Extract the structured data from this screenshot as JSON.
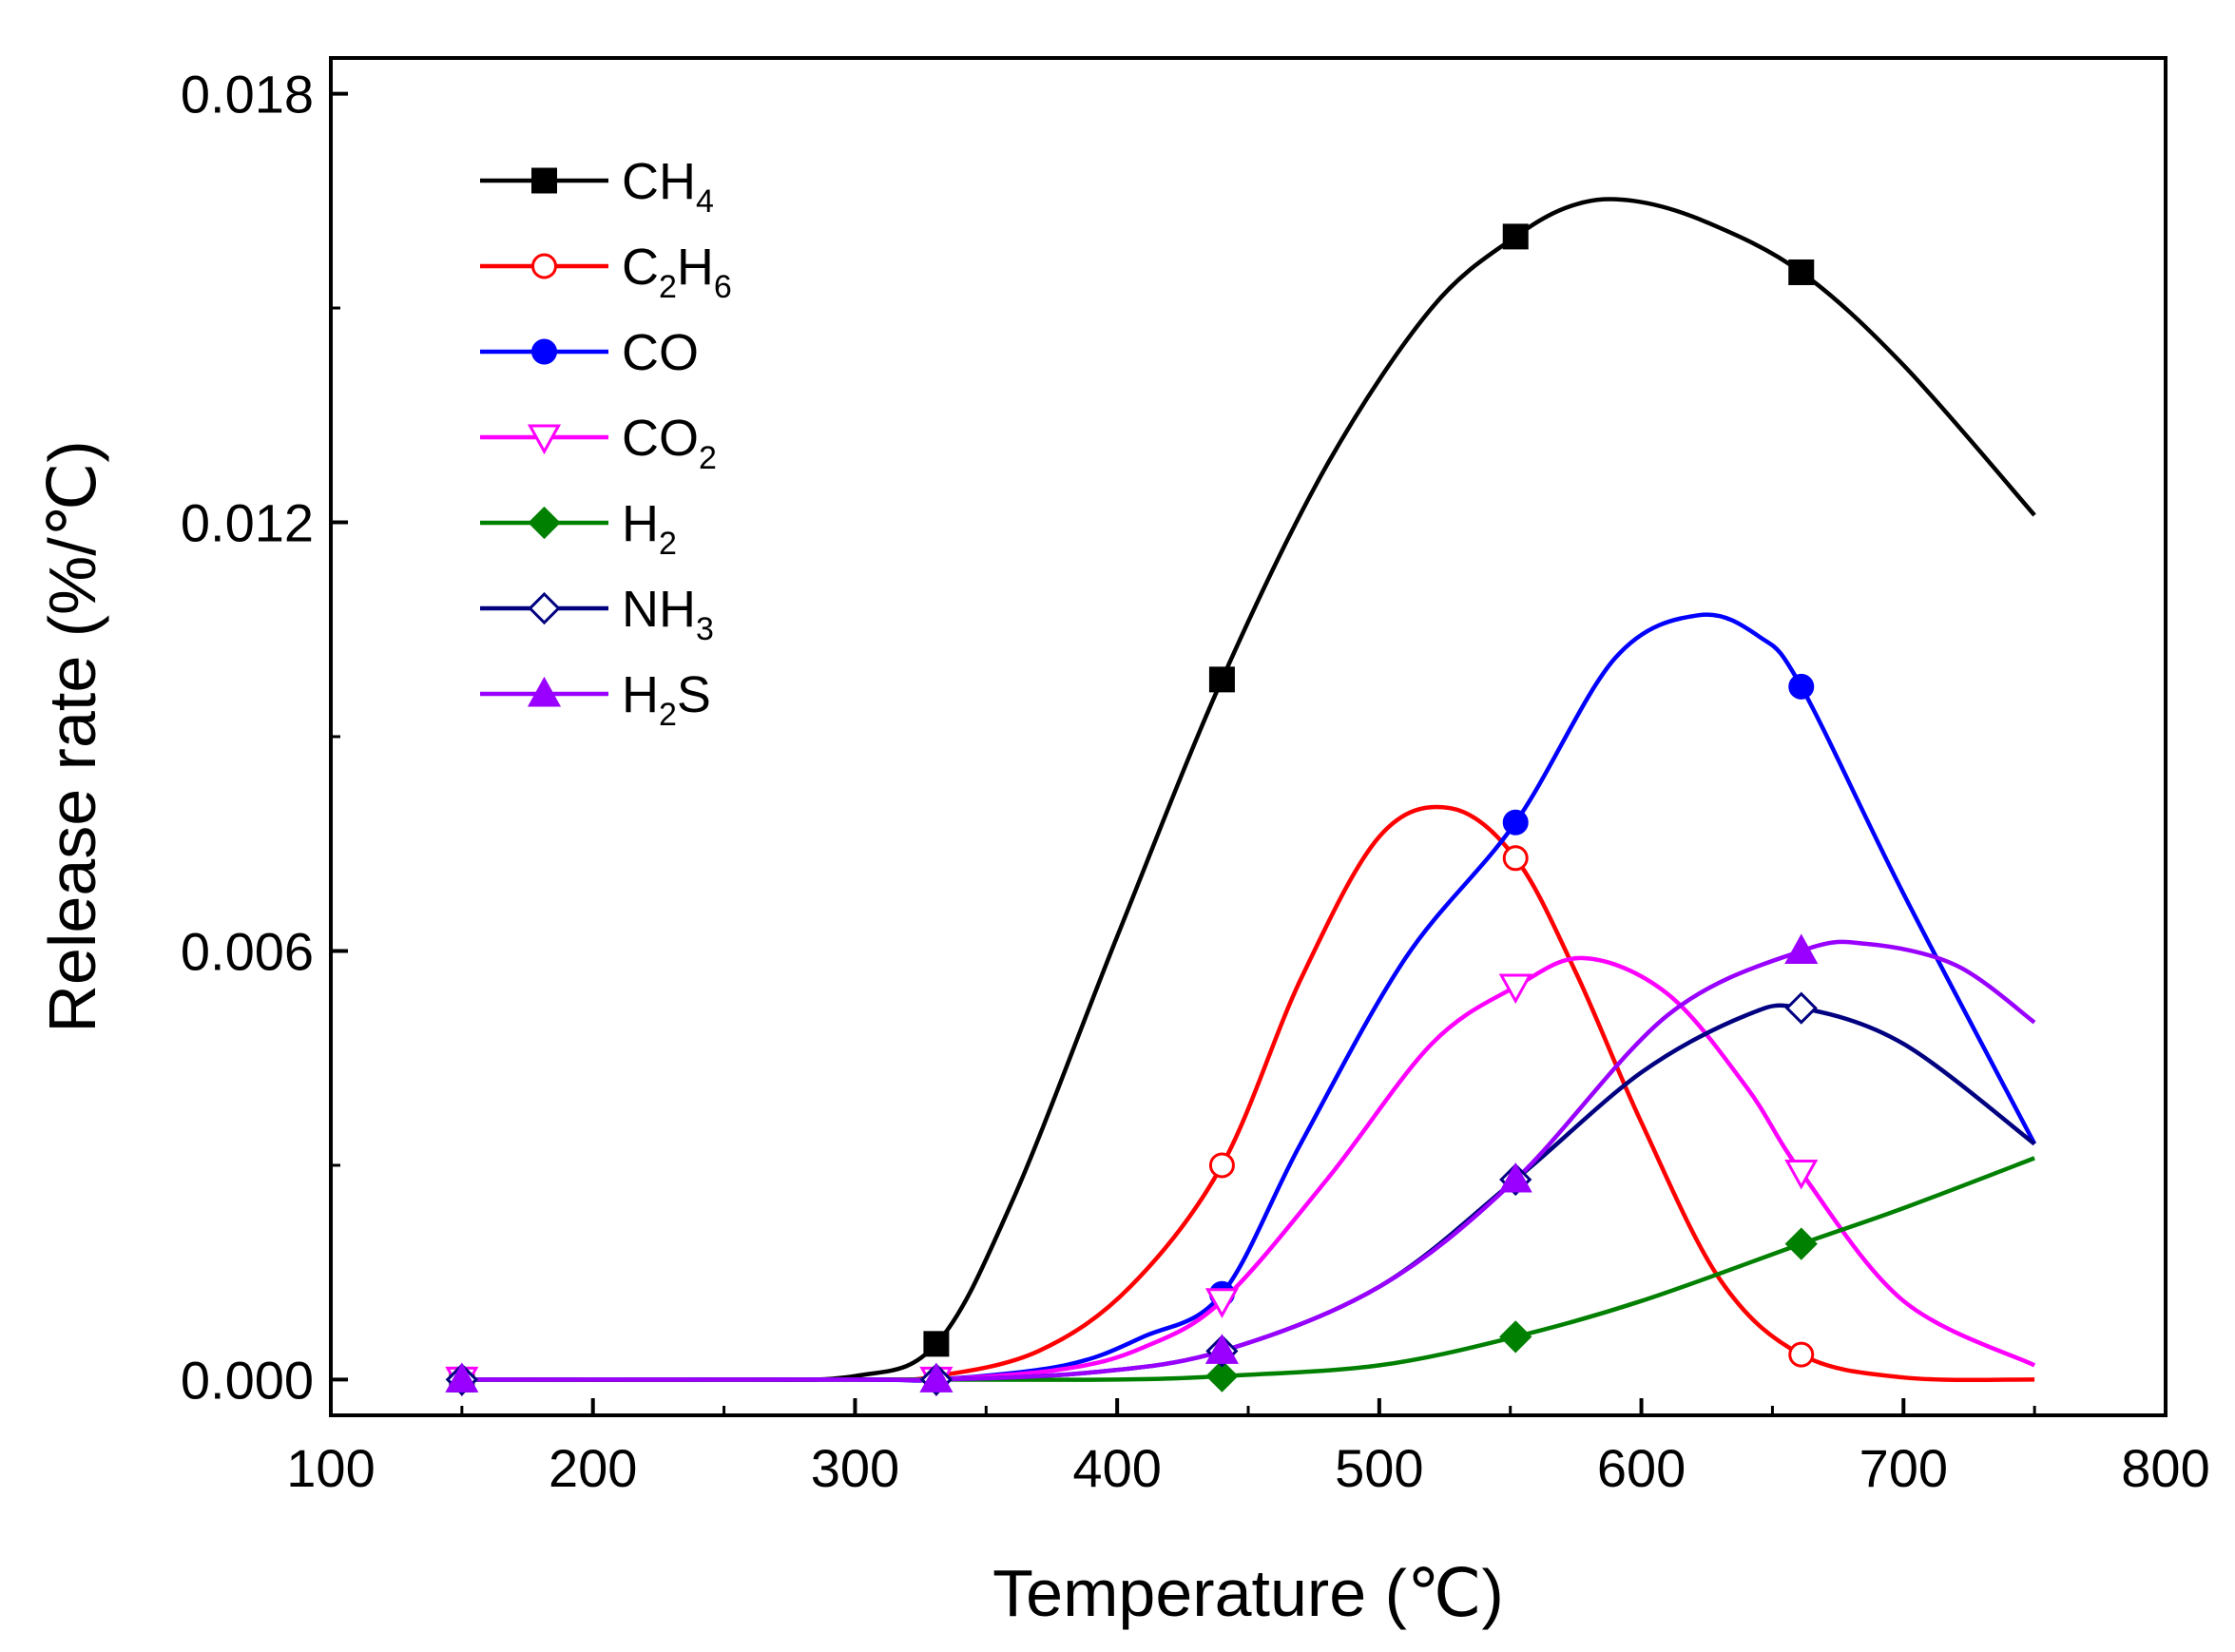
{
  "chart_data": {
    "type": "line",
    "title": "",
    "xlabel": "Temperature (℃)",
    "ylabel": "Release rate (%/℃)",
    "xlim": [
      100,
      800
    ],
    "ylim": [
      -0.0005,
      0.0185
    ],
    "xticks": [
      100,
      200,
      300,
      400,
      500,
      600,
      700,
      800
    ],
    "xtick_labels": [
      "100",
      "200",
      "300",
      "400",
      "500",
      "600",
      "700",
      "800"
    ],
    "yticks": [
      0.0,
      0.006,
      0.012,
      0.018
    ],
    "ytick_labels": [
      "0.000",
      "0.006",
      "0.012",
      "0.018"
    ],
    "legend_position": "top-left",
    "grid": false,
    "series": [
      {
        "name": "CH4",
        "label_main": "CH",
        "label_sub": "4",
        "label_tail": "",
        "label_tail_sub": "",
        "color": "#000000",
        "marker": "square",
        "filled": true,
        "points": [
          [
            150,
            0.0
          ],
          [
            331,
            0.0005
          ],
          [
            440,
            0.0098
          ],
          [
            552,
            0.016
          ],
          [
            661,
            0.0155
          ]
        ],
        "curve": [
          [
            150,
            0.0
          ],
          [
            250,
            0.0
          ],
          [
            300,
            5e-05
          ],
          [
            331,
            0.0005
          ],
          [
            360,
            0.0025
          ],
          [
            400,
            0.0062
          ],
          [
            440,
            0.0098
          ],
          [
            480,
            0.0128
          ],
          [
            520,
            0.015
          ],
          [
            552,
            0.016
          ],
          [
            575,
            0.01645
          ],
          [
            597,
            0.0165
          ],
          [
            625,
            0.0162
          ],
          [
            661,
            0.0155
          ],
          [
            700,
            0.0142
          ],
          [
            750,
            0.0121
          ]
        ]
      },
      {
        "name": "C2H6",
        "label_main": "C",
        "label_sub": "2",
        "label_tail": "H",
        "label_tail_sub": "6",
        "color": "#ff0000",
        "marker": "circle",
        "filled": false,
        "points": [
          [
            150,
            0.0
          ],
          [
            331,
            0.0
          ],
          [
            440,
            0.003
          ],
          [
            552,
            0.0073
          ],
          [
            661,
            0.00035
          ]
        ],
        "curve": [
          [
            150,
            0.0
          ],
          [
            300,
            0.0
          ],
          [
            331,
            5e-05
          ],
          [
            370,
            0.0004
          ],
          [
            405,
            0.0013
          ],
          [
            440,
            0.003
          ],
          [
            470,
            0.0056
          ],
          [
            500,
            0.0076
          ],
          [
            527,
            0.008
          ],
          [
            552,
            0.0073
          ],
          [
            575,
            0.0057
          ],
          [
            600,
            0.0036
          ],
          [
            630,
            0.0014
          ],
          [
            661,
            0.00035
          ],
          [
            700,
            3e-05
          ],
          [
            750,
            0.0
          ]
        ]
      },
      {
        "name": "CO",
        "label_main": "CO",
        "label_sub": "",
        "label_tail": "",
        "label_tail_sub": "",
        "color": "#0000ff",
        "marker": "circle",
        "filled": true,
        "points": [
          [
            150,
            0.0
          ],
          [
            331,
            0.0
          ],
          [
            440,
            0.0012
          ],
          [
            552,
            0.0078
          ],
          [
            661,
            0.0097
          ]
        ],
        "curve": [
          [
            150,
            0.0
          ],
          [
            300,
            0.0
          ],
          [
            331,
            0.0
          ],
          [
            380,
            0.0002
          ],
          [
            410,
            0.0006
          ],
          [
            440,
            0.0012
          ],
          [
            470,
            0.0033
          ],
          [
            510,
            0.0059
          ],
          [
            552,
            0.0078
          ],
          [
            590,
            0.0101
          ],
          [
            622,
            0.0107
          ],
          [
            645,
            0.0104
          ],
          [
            661,
            0.0097
          ],
          [
            700,
            0.0068
          ],
          [
            750,
            0.0033
          ]
        ]
      },
      {
        "name": "CO2",
        "label_main": "CO",
        "label_sub": "2",
        "label_tail": "",
        "label_tail_sub": "",
        "color": "#ff00ff",
        "marker": "triangle-down",
        "filled": false,
        "points": [
          [
            150,
            0.0
          ],
          [
            331,
            0.0
          ],
          [
            440,
            0.0011
          ],
          [
            552,
            0.0055
          ],
          [
            661,
            0.0029
          ]
        ],
        "curve": [
          [
            150,
            0.0
          ],
          [
            300,
            0.0
          ],
          [
            331,
            0.0
          ],
          [
            380,
            0.00015
          ],
          [
            410,
            0.00045
          ],
          [
            440,
            0.0011
          ],
          [
            480,
            0.0028
          ],
          [
            520,
            0.0047
          ],
          [
            552,
            0.0055
          ],
          [
            578,
            0.0059
          ],
          [
            610,
            0.0054
          ],
          [
            640,
            0.0041
          ],
          [
            661,
            0.0029
          ],
          [
            700,
            0.0011
          ],
          [
            750,
            0.0002
          ]
        ]
      },
      {
        "name": "H2",
        "label_main": "H",
        "label_sub": "2",
        "label_tail": "",
        "label_tail_sub": "",
        "color": "#008000",
        "marker": "diamond",
        "filled": true,
        "points": [
          [
            150,
            0.0
          ],
          [
            331,
            0.0
          ],
          [
            440,
            5e-05
          ],
          [
            552,
            0.0006
          ],
          [
            661,
            0.0019
          ]
        ],
        "curve": [
          [
            150,
            0.0
          ],
          [
            331,
            0.0
          ],
          [
            400,
            0.0
          ],
          [
            440,
            5e-05
          ],
          [
            500,
            0.0002
          ],
          [
            552,
            0.0006
          ],
          [
            600,
            0.0011
          ],
          [
            661,
            0.0019
          ],
          [
            700,
            0.0024
          ],
          [
            750,
            0.0031
          ]
        ]
      },
      {
        "name": "NH3",
        "label_main": "NH",
        "label_sub": "3",
        "label_tail": "",
        "label_tail_sub": "",
        "color": "#000080",
        "marker": "diamond",
        "filled": false,
        "points": [
          [
            150,
            0.0
          ],
          [
            331,
            0.0
          ],
          [
            440,
            0.0004
          ],
          [
            552,
            0.0028
          ],
          [
            661,
            0.0052
          ]
        ],
        "curve": [
          [
            150,
            0.0
          ],
          [
            300,
            0.0
          ],
          [
            331,
            0.0
          ],
          [
            390,
            0.0001
          ],
          [
            440,
            0.0004
          ],
          [
            500,
            0.0013
          ],
          [
            552,
            0.0028
          ],
          [
            600,
            0.0043
          ],
          [
            640,
            0.0051
          ],
          [
            661,
            0.0052
          ],
          [
            700,
            0.0047
          ],
          [
            750,
            0.0033
          ]
        ]
      },
      {
        "name": "H2S",
        "label_main": "H",
        "label_sub": "2",
        "label_tail": "S",
        "label_tail_sub": "",
        "color": "#9900ff",
        "marker": "triangle-up",
        "filled": true,
        "points": [
          [
            150,
            0.0
          ],
          [
            331,
            0.0
          ],
          [
            440,
            0.0004
          ],
          [
            552,
            0.0028
          ],
          [
            661,
            0.006
          ]
        ],
        "curve": [
          [
            150,
            0.0
          ],
          [
            300,
            0.0
          ],
          [
            331,
            0.0
          ],
          [
            390,
            0.0001
          ],
          [
            440,
            0.0004
          ],
          [
            500,
            0.0013
          ],
          [
            552,
            0.0028
          ],
          [
            610,
            0.0051
          ],
          [
            661,
            0.006
          ],
          [
            686,
            0.0061
          ],
          [
            720,
            0.0058
          ],
          [
            750,
            0.005
          ]
        ]
      }
    ]
  }
}
